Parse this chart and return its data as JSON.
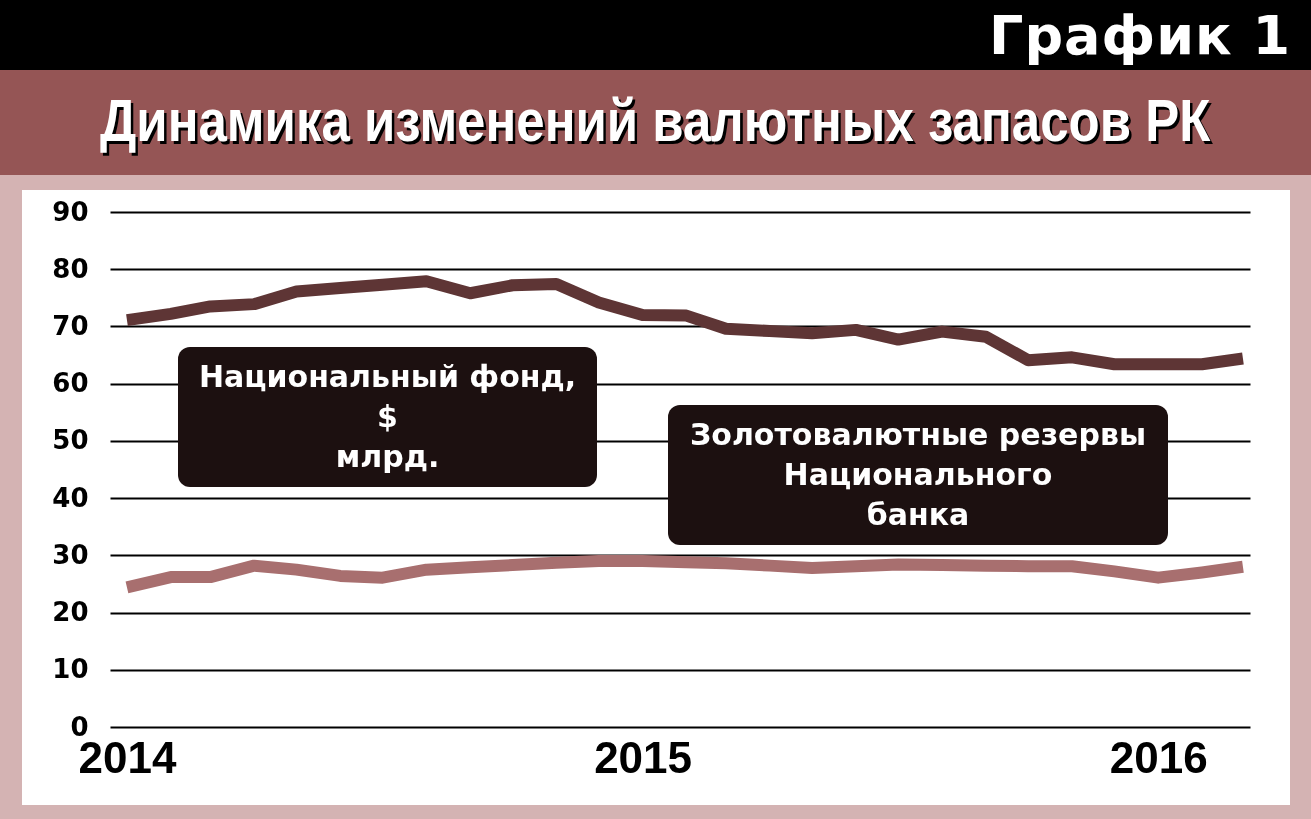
{
  "chart_data": {
    "type": "line",
    "title": "Динамика изменений валютных запасов РК",
    "annotations": [
      "График 1"
    ],
    "x": [
      "2014-01",
      "2014-02",
      "2014-03",
      "2014-04",
      "2014-05",
      "2014-06",
      "2014-07",
      "2014-08",
      "2014-09",
      "2014-10",
      "2014-11",
      "2014-12",
      "2015-01",
      "2015-02",
      "2015-03",
      "2015-04",
      "2015-05",
      "2015-06",
      "2015-07",
      "2015-08",
      "2015-09",
      "2015-10",
      "2015-11",
      "2015-12",
      "2016-01",
      "2016-02",
      "2016-03"
    ],
    "series": [
      {
        "name": "Национальный фонд, $ млрд.",
        "color": "#5e3535",
        "values": [
          71.1,
          72.2,
          73.5,
          73.9,
          76.1,
          76.7,
          77.3,
          77.9,
          75.8,
          77.2,
          77.4,
          74.2,
          72,
          71.9,
          69.6,
          69.2,
          68.8,
          69.4,
          67.7,
          69.1,
          68.2,
          64.1,
          64.6,
          63.4,
          63.4,
          63.4,
          64.4
        ]
      },
      {
        "name": "Золотовалютные резервы Национального банка",
        "color": "#a86f6f",
        "values": [
          24.4,
          26.2,
          26.2,
          28.2,
          27.5,
          26.4,
          26.1,
          27.5,
          27.9,
          28.3,
          28.7,
          29,
          29,
          28.8,
          28.6,
          28.2,
          27.8,
          28.1,
          28.4,
          28.3,
          28.2,
          28.1,
          28.1,
          27.2,
          26.1,
          27,
          28
        ]
      }
    ],
    "xlim": [
      "2013-12-20",
      "2016-03-06"
    ],
    "xticks": [
      "2014",
      "2015",
      "2016"
    ],
    "ylim": [
      0,
      90
    ],
    "yticks": [
      0,
      10,
      20,
      30,
      40,
      50,
      60,
      70,
      80,
      90
    ],
    "grid": "y",
    "legend": false,
    "line_style": "solid",
    "marker": "none"
  }
}
